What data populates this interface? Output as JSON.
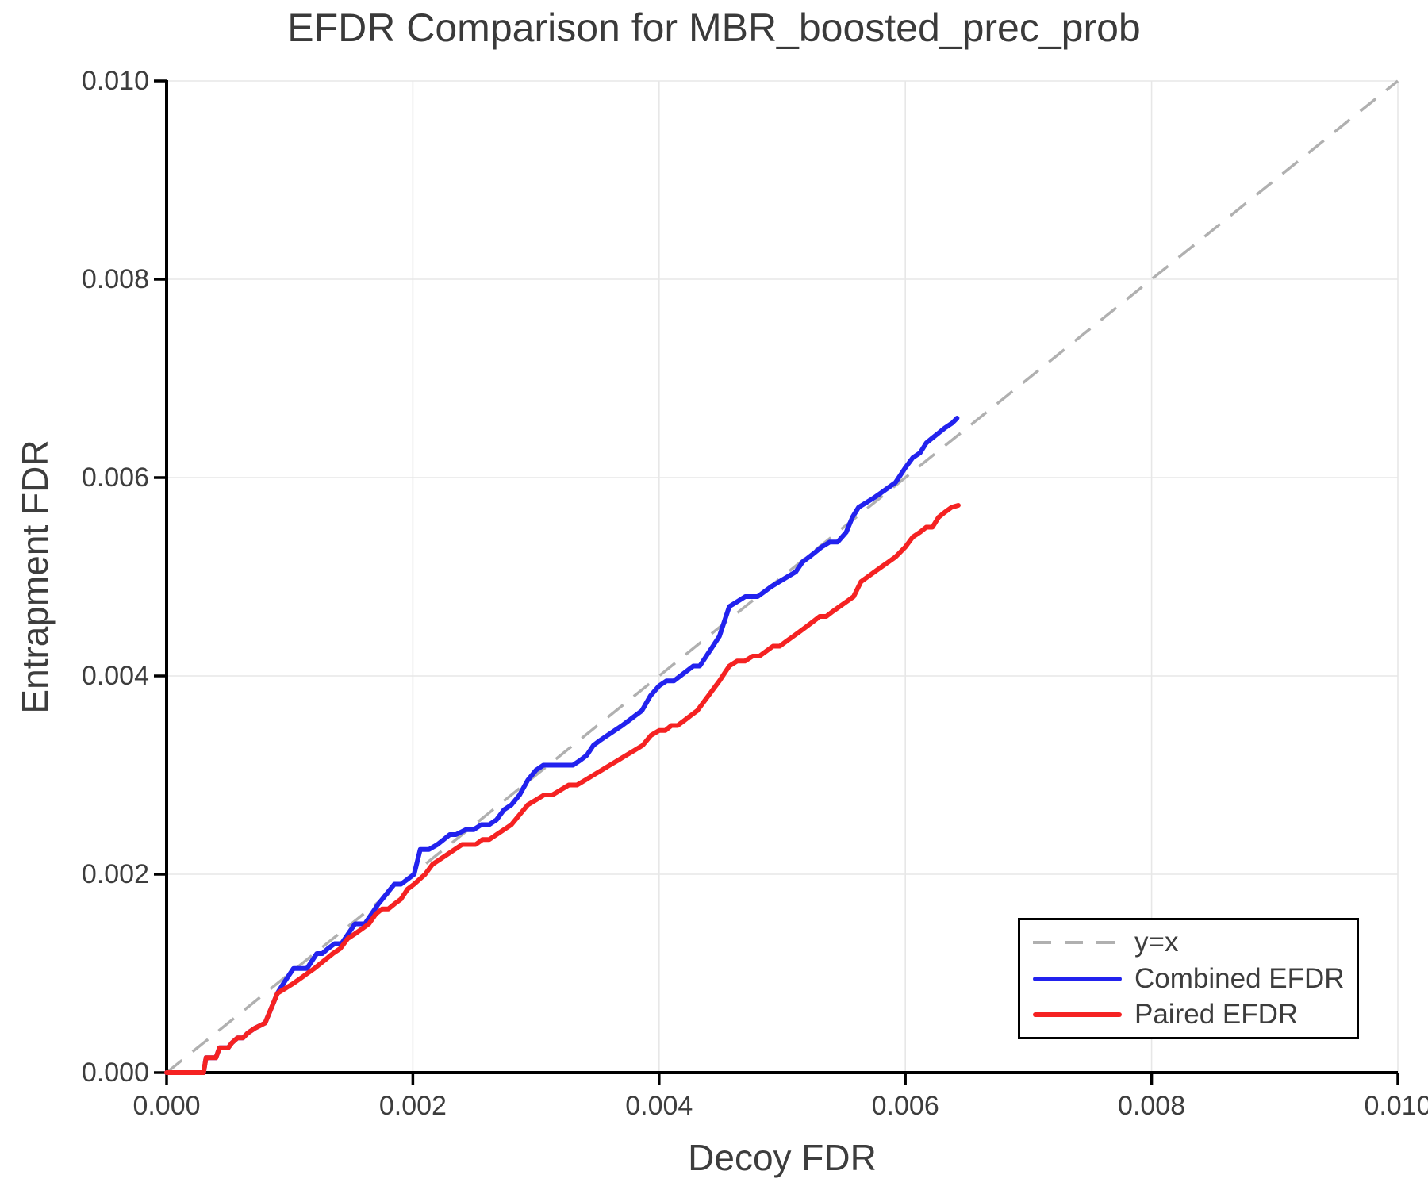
{
  "chart_data": {
    "type": "line",
    "title": "EFDR Comparison for MBR_boosted_prec_prob",
    "xlabel": "Decoy FDR",
    "ylabel": "Entrapment FDR",
    "xlim": [
      0,
      0.01
    ],
    "ylim": [
      0,
      0.01
    ],
    "grid": true,
    "legend_position": "lower right",
    "xticks": {
      "values": [
        0,
        0.002,
        0.004,
        0.006,
        0.008,
        0.01
      ],
      "labels": [
        "0.000",
        "0.002",
        "0.004",
        "0.006",
        "0.008",
        "0.010"
      ]
    },
    "yticks": {
      "values": [
        0,
        0.002,
        0.004,
        0.006,
        0.008,
        0.01
      ],
      "labels": [
        "0.000",
        "0.002",
        "0.004",
        "0.006",
        "0.008",
        "0.010"
      ]
    },
    "series": [
      {
        "name": "y=x",
        "style": "dashed",
        "color": "#b0b0b0",
        "points": [
          [
            0,
            0
          ],
          [
            0.01,
            0.01
          ]
        ]
      },
      {
        "name": "Combined EFDR",
        "style": "solid",
        "color": "#2222ee",
        "points": [
          [
            0.0,
            0.0
          ],
          [
            0.0003,
            0.0
          ],
          [
            0.00032,
            0.00014
          ],
          [
            0.0004,
            0.00016
          ],
          [
            0.00043,
            0.00024
          ],
          [
            0.0005,
            0.00026
          ],
          [
            0.00053,
            0.00032
          ],
          [
            0.00062,
            0.00034
          ],
          [
            0.00066,
            0.0004
          ],
          [
            0.00072,
            0.00044
          ],
          [
            0.0008,
            0.00052
          ],
          [
            0.0009,
            0.00082
          ],
          [
            0.00095,
            0.0009
          ],
          [
            0.00103,
            0.00103
          ],
          [
            0.00114,
            0.00107
          ],
          [
            0.00122,
            0.00118
          ],
          [
            0.00131,
            0.00127
          ],
          [
            0.00142,
            0.00131
          ],
          [
            0.00153,
            0.00148
          ],
          [
            0.00161,
            0.00152
          ],
          [
            0.00172,
            0.0017
          ],
          [
            0.00185,
            0.00188
          ],
          [
            0.00201,
            0.002
          ],
          [
            0.00206,
            0.00223
          ],
          [
            0.0022,
            0.0023
          ],
          [
            0.00235,
            0.00242
          ],
          [
            0.00243,
            0.00246
          ],
          [
            0.00262,
            0.0025
          ],
          [
            0.0028,
            0.00272
          ],
          [
            0.003,
            0.00303
          ],
          [
            0.00306,
            0.0031
          ],
          [
            0.00336,
            0.00313
          ],
          [
            0.00352,
            0.00336
          ],
          [
            0.0037,
            0.0035
          ],
          [
            0.00386,
            0.00365
          ],
          [
            0.004,
            0.00392
          ],
          [
            0.00412,
            0.00397
          ],
          [
            0.00433,
            0.00412
          ],
          [
            0.00449,
            0.00442
          ],
          [
            0.00457,
            0.00468
          ],
          [
            0.0047,
            0.00478
          ],
          [
            0.0048,
            0.00482
          ],
          [
            0.00491,
            0.00488
          ],
          [
            0.00511,
            0.00506
          ],
          [
            0.00522,
            0.00521
          ],
          [
            0.00532,
            0.0053
          ],
          [
            0.00545,
            0.00537
          ],
          [
            0.00552,
            0.00547
          ],
          [
            0.00562,
            0.00568
          ],
          [
            0.00575,
            0.00578
          ],
          [
            0.00592,
            0.00595
          ],
          [
            0.006,
            0.00612
          ],
          [
            0.00612,
            0.00625
          ],
          [
            0.00622,
            0.0064
          ],
          [
            0.00632,
            0.00652
          ],
          [
            0.00638,
            0.00654
          ],
          [
            0.00642,
            0.0066
          ]
        ]
      },
      {
        "name": "Paired EFDR",
        "style": "solid",
        "color": "#f52222",
        "points": [
          [
            0.0,
            0.0
          ],
          [
            0.0003,
            0.0
          ],
          [
            0.00032,
            0.00014
          ],
          [
            0.0004,
            0.00016
          ],
          [
            0.00043,
            0.00024
          ],
          [
            0.0005,
            0.00026
          ],
          [
            0.00053,
            0.00032
          ],
          [
            0.00062,
            0.00034
          ],
          [
            0.00066,
            0.0004
          ],
          [
            0.00072,
            0.00044
          ],
          [
            0.0008,
            0.0005
          ],
          [
            0.0009,
            0.00078
          ],
          [
            0.00103,
            0.00092
          ],
          [
            0.0012,
            0.00105
          ],
          [
            0.00135,
            0.00122
          ],
          [
            0.00153,
            0.00138
          ],
          [
            0.0017,
            0.00158
          ],
          [
            0.00185,
            0.00172
          ],
          [
            0.00201,
            0.00188
          ],
          [
            0.0021,
            0.002
          ],
          [
            0.00222,
            0.00215
          ],
          [
            0.0024,
            0.00228
          ],
          [
            0.00262,
            0.00235
          ],
          [
            0.0028,
            0.00252
          ],
          [
            0.003,
            0.00276
          ],
          [
            0.0032,
            0.00285
          ],
          [
            0.0034,
            0.00295
          ],
          [
            0.0036,
            0.0031
          ],
          [
            0.0038,
            0.00325
          ],
          [
            0.004,
            0.00344
          ],
          [
            0.00415,
            0.00352
          ],
          [
            0.00431,
            0.00366
          ],
          [
            0.00449,
            0.00396
          ],
          [
            0.00457,
            0.0041
          ],
          [
            0.00476,
            0.00419
          ],
          [
            0.00498,
            0.00432
          ],
          [
            0.0052,
            0.00452
          ],
          [
            0.00541,
            0.00464
          ],
          [
            0.00558,
            0.00482
          ],
          [
            0.00564,
            0.00495
          ],
          [
            0.00575,
            0.00503
          ],
          [
            0.00592,
            0.00522
          ],
          [
            0.006,
            0.00532
          ],
          [
            0.00612,
            0.00545
          ],
          [
            0.00622,
            0.00552
          ],
          [
            0.00632,
            0.00565
          ],
          [
            0.00643,
            0.00572
          ]
        ]
      }
    ]
  },
  "colors": {
    "grid": "#e7e7e7",
    "spine": "#000000",
    "text": "#3d3d3d",
    "background": "#ffffff"
  }
}
